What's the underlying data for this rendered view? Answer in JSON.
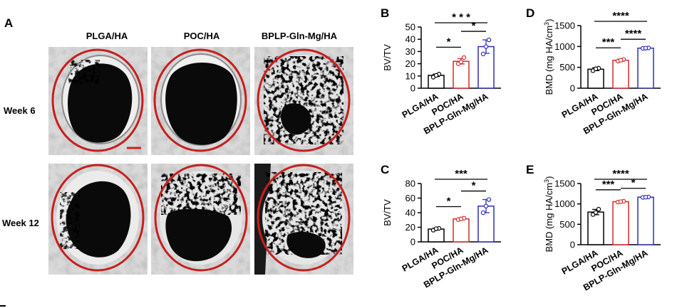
{
  "panel_a": {
    "letter": "A",
    "columns": [
      "PLGA/HA",
      "POC/HA",
      "BPLP-Gln-Mg/HA"
    ],
    "rows": [
      "Week 6",
      "Week 12"
    ],
    "scale_bar_color": "#d42020",
    "defect_circle_color": "#c81e1e"
  },
  "chart_data": [
    {
      "id": "B",
      "letter": "B",
      "type": "bar",
      "ylabel": "BV/TV",
      "categories": [
        "PLGA/HA",
        "POC/HA",
        "BPLP-Gln-Mg/HA"
      ],
      "values": [
        10.5,
        22,
        34
      ],
      "points": [
        [
          9,
          11.5,
          10.5
        ],
        [
          20,
          25,
          21.5
        ],
        [
          28,
          39.5,
          34
        ]
      ],
      "errors": [
        1.0,
        2.2,
        5.5
      ],
      "ylim": [
        0,
        50
      ],
      "ticks": [
        0,
        10,
        20,
        30,
        40,
        50
      ],
      "colors": [
        "#000000",
        "#d12c2c",
        "#2e2eb8"
      ],
      "significance": [
        {
          "from": 0,
          "to": 1,
          "label": "*"
        },
        {
          "from": 1,
          "to": 2,
          "label": "*"
        },
        {
          "from": 0,
          "to": 2,
          "label": "* * *"
        }
      ]
    },
    {
      "id": "C",
      "letter": "C",
      "type": "bar",
      "ylabel": "BV/TV",
      "categories": [
        "PLGA/HA",
        "POC/HA",
        "BPLP-Gln-Mg/HA"
      ],
      "values": [
        17.5,
        31.5,
        49
      ],
      "points": [
        [
          16,
          18.5,
          18
        ],
        [
          30.5,
          32.5,
          31.5
        ],
        [
          40,
          58,
          49
        ]
      ],
      "errors": [
        1.2,
        1.2,
        9
      ],
      "ylim": [
        0,
        80
      ],
      "ticks": [
        0,
        20,
        40,
        60,
        80
      ],
      "colors": [
        "#000000",
        "#d12c2c",
        "#2e2eb8"
      ],
      "significance": [
        {
          "from": 0,
          "to": 1,
          "label": "*"
        },
        {
          "from": 1,
          "to": 2,
          "label": "*"
        },
        {
          "from": 0,
          "to": 2,
          "label": "***"
        }
      ]
    },
    {
      "id": "D",
      "letter": "D",
      "type": "bar",
      "ylabel": "BMD (mg HA/cm",
      "ylabel_sup": "3",
      "ylabel_end": ")",
      "categories": [
        "PLGA/HA",
        "POC/HA",
        "BPLP-Gln-Mg/HA"
      ],
      "values": [
        455,
        670,
        960
      ],
      "points": [
        [
          420,
          480,
          465
        ],
        [
          650,
          690,
          670
        ],
        [
          955,
          965,
          960
        ]
      ],
      "errors": [
        35,
        25,
        8
      ],
      "ylim": [
        0,
        1500
      ],
      "ticks": [
        0,
        500,
        1000,
        1500
      ],
      "colors": [
        "#000000",
        "#d12c2c",
        "#2e2eb8"
      ],
      "significance": [
        {
          "from": 0,
          "to": 1,
          "label": "***"
        },
        {
          "from": 1,
          "to": 2,
          "label": "****"
        },
        {
          "from": 0,
          "to": 2,
          "label": "****"
        }
      ]
    },
    {
      "id": "E",
      "letter": "E",
      "type": "bar",
      "ylabel": "BMD (mg HA/cm",
      "ylabel_sup": "3",
      "ylabel_end": ")",
      "categories": [
        "PLGA/HA",
        "POC/HA",
        "BPLP-Gln-Mg/HA"
      ],
      "values": [
        800,
        1055,
        1165
      ],
      "points": [
        [
          740,
          870,
          790
        ],
        [
          1045,
          1065,
          1055
        ],
        [
          1160,
          1170,
          1165
        ]
      ],
      "errors": [
        65,
        12,
        8
      ],
      "ylim": [
        0,
        1500
      ],
      "ticks": [
        0,
        500,
        1000,
        1500
      ],
      "colors": [
        "#000000",
        "#d12c2c",
        "#2e2eb8"
      ],
      "significance": [
        {
          "from": 0,
          "to": 1,
          "label": "***"
        },
        {
          "from": 1,
          "to": 2,
          "label": "*"
        },
        {
          "from": 0,
          "to": 2,
          "label": "****"
        }
      ]
    }
  ]
}
